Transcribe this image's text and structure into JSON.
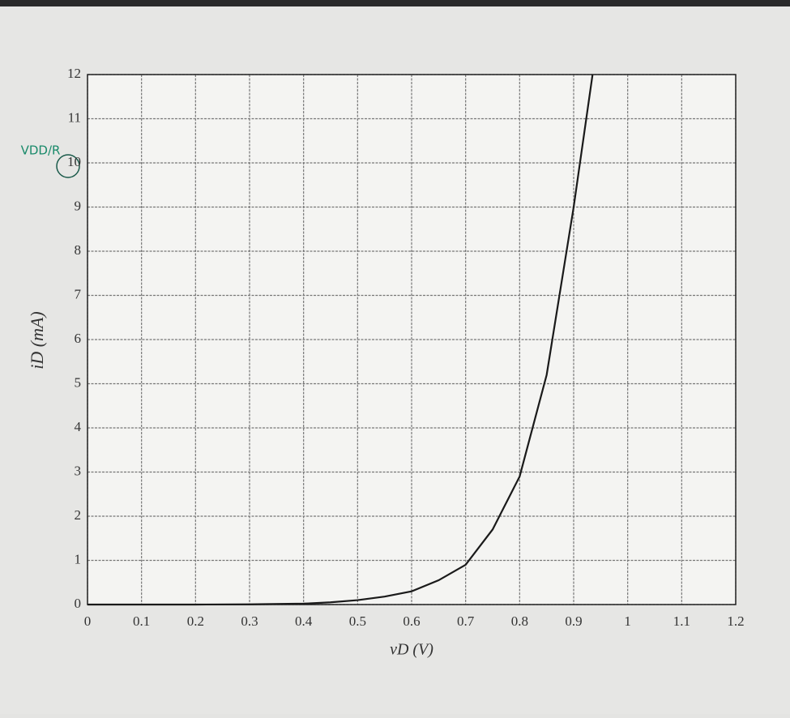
{
  "chart_data": {
    "type": "line",
    "xlabel": "vD (V)",
    "ylabel": "iD (mA)",
    "annotation": "VDD/R",
    "x": [
      0,
      0.1,
      0.2,
      0.3,
      0.4,
      0.45,
      0.5,
      0.55,
      0.6,
      0.65,
      0.7,
      0.75,
      0.8,
      0.85,
      0.9,
      0.935
    ],
    "series": [
      {
        "color": "#1a1a1a",
        "values": [
          0,
          0,
          0,
          0.005,
          0.02,
          0.05,
          0.1,
          0.18,
          0.3,
          0.55,
          0.9,
          1.7,
          2.9,
          5.2,
          9.0,
          12
        ]
      }
    ],
    "xlim": [
      0,
      1.2
    ],
    "ylim": [
      0,
      12
    ],
    "xticks": [
      0,
      0.1,
      0.2,
      0.3,
      0.4,
      0.5,
      0.6,
      0.7,
      0.8,
      0.9,
      1,
      1.1,
      1.2
    ],
    "yticks": [
      0,
      1,
      2,
      3,
      4,
      5,
      6,
      7,
      8,
      9,
      10,
      11,
      12
    ],
    "grid": true
  }
}
